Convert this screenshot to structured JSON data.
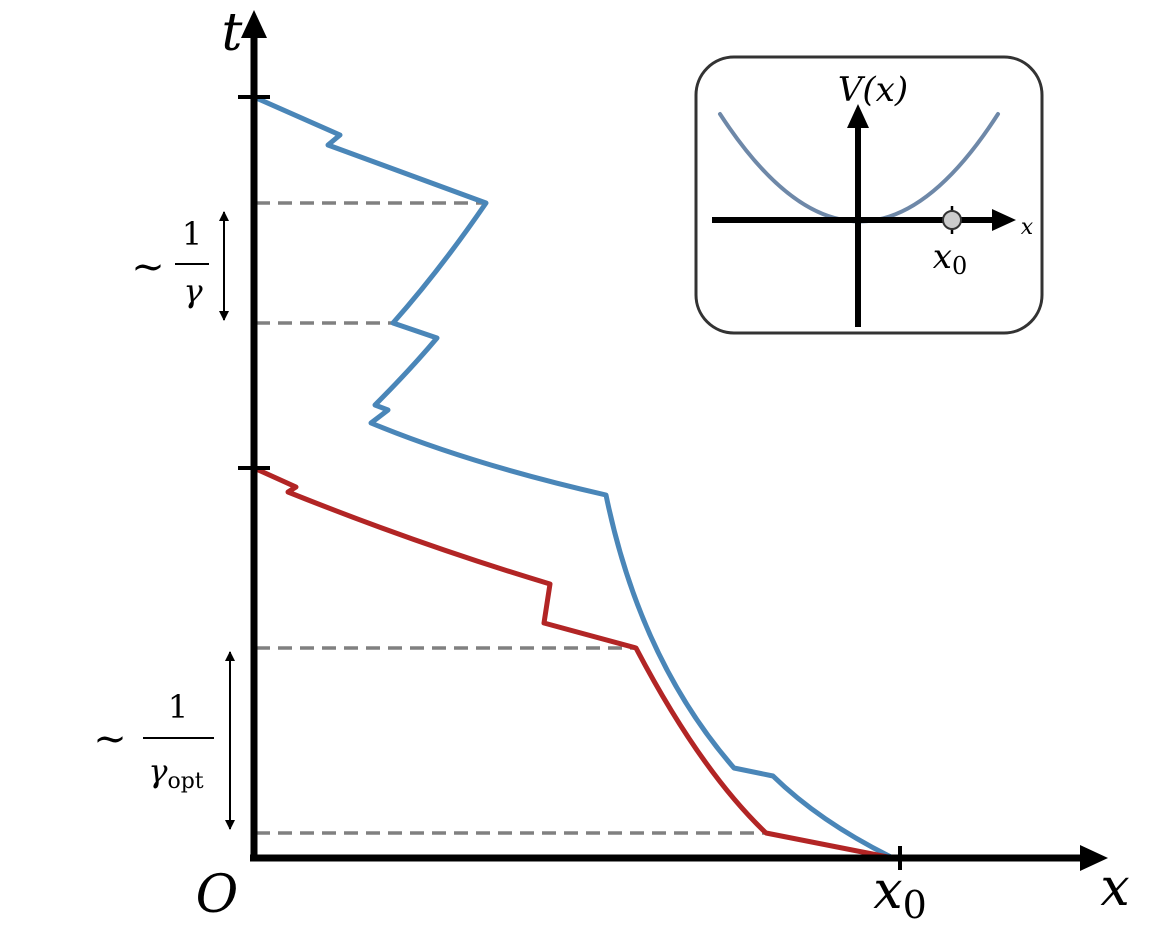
{
  "main_axes": {
    "vertical_label": "t",
    "horizontal_label": "x",
    "origin_label": "O",
    "x0_label": "x",
    "x0_subscript": "0"
  },
  "brackets": {
    "upper": {
      "tilde": "~",
      "numerator": "1",
      "denominator": "γ"
    },
    "lower": {
      "tilde": "~",
      "numerator": "1",
      "denominator": "γ",
      "denominator_subscript": "opt"
    }
  },
  "inset": {
    "potential_label": "V(x)",
    "x_axis_label": "x",
    "x0_label": "x",
    "x0_subscript": "0"
  },
  "colors": {
    "blue_path": "#4a86b8",
    "red_path": "#b22525",
    "dashed": "#808080",
    "inset_curve": "#6e88a8",
    "marker": "#cccccc"
  }
}
